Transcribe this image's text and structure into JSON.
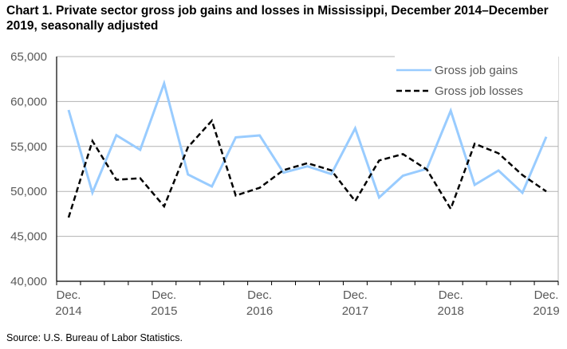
{
  "chart_data": {
    "type": "line",
    "title": "Chart 1. Private sector gross job gains and losses in Mississippi, December 2014–December 2019, seasonally adjusted",
    "source": "Source: U.S. Bureau of Labor Statistics.",
    "xlabel": "",
    "ylabel": "",
    "ylim": [
      40000,
      65000
    ],
    "yticks": [
      40000,
      45000,
      50000,
      55000,
      60000,
      65000
    ],
    "ytick_labels": [
      "40,000",
      "45,000",
      "50,000",
      "55,000",
      "60,000",
      "65,000"
    ],
    "grid": true,
    "legend_position": "top-right",
    "categories": [
      "Dec. 2014",
      "Mar. 2015",
      "Jun. 2015",
      "Sep. 2015",
      "Dec. 2015",
      "Mar. 2016",
      "Jun. 2016",
      "Sep. 2016",
      "Dec. 2016",
      "Mar. 2017",
      "Jun. 2017",
      "Sep. 2017",
      "Dec. 2017",
      "Mar. 2018",
      "Jun. 2018",
      "Sep. 2018",
      "Dec. 2018",
      "Mar. 2019",
      "Jun. 2019",
      "Sep. 2019",
      "Dec. 2019"
    ],
    "xtick_labels": [
      {
        "index": 0,
        "line1": "Dec.",
        "line2": "2014"
      },
      {
        "index": 4,
        "line1": "Dec.",
        "line2": "2015"
      },
      {
        "index": 8,
        "line1": "Dec.",
        "line2": "2016"
      },
      {
        "index": 12,
        "line1": "Dec.",
        "line2": "2017"
      },
      {
        "index": 16,
        "line1": "Dec.",
        "line2": "2018"
      },
      {
        "index": 20,
        "line1": "Dec.",
        "line2": "2019"
      }
    ],
    "series": [
      {
        "name": "Gross job gains",
        "color": "#99CCFF",
        "style": "solid",
        "values": [
          59060,
          49870,
          56250,
          54630,
          62010,
          51880,
          50550,
          56010,
          56220,
          52080,
          52790,
          51930,
          57020,
          49330,
          51750,
          52520,
          58970,
          50730,
          52320,
          49840,
          56070
        ]
      },
      {
        "name": "Gross job losses",
        "color": "#000000",
        "style": "dashed",
        "values": [
          47090,
          55600,
          51290,
          51460,
          48330,
          54920,
          57870,
          49540,
          50400,
          52370,
          53140,
          52340,
          48920,
          53440,
          54150,
          52430,
          48060,
          55300,
          54240,
          51820,
          50000
        ]
      }
    ]
  }
}
